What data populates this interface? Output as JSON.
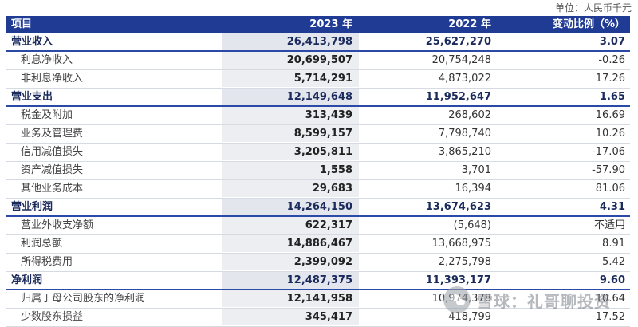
{
  "unit_note": "单位：人民币千元",
  "header": {
    "item": "项目",
    "y2023": "2023 年",
    "y2022": "2022 年",
    "change": "变动比例（%）"
  },
  "rows": [
    {
      "label": "营业收入",
      "y2023": "26,413,798",
      "y2022": "25,627,270",
      "change": "3.07"
    },
    {
      "label": "利息净收入",
      "y2023": "20,699,507",
      "y2022": "20,754,248",
      "change": "-0.26"
    },
    {
      "label": "非利息净收入",
      "y2023": "5,714,291",
      "y2022": "4,873,022",
      "change": "17.26"
    },
    {
      "label": "营业支出",
      "y2023": "12,149,648",
      "y2022": "11,952,647",
      "change": "1.65"
    },
    {
      "label": "税金及附加",
      "y2023": "313,439",
      "y2022": "268,602",
      "change": "16.69"
    },
    {
      "label": "业务及管理费",
      "y2023": "8,599,157",
      "y2022": "7,798,740",
      "change": "10.26"
    },
    {
      "label": "信用减值损失",
      "y2023": "3,205,811",
      "y2022": "3,865,210",
      "change": "-17.06"
    },
    {
      "label": "资产减值损失",
      "y2023": "1,558",
      "y2022": "3,701",
      "change": "-57.90"
    },
    {
      "label": "其他业务成本",
      "y2023": "29,683",
      "y2022": "16,394",
      "change": "81.06"
    },
    {
      "label": "营业利润",
      "y2023": "14,264,150",
      "y2022": "13,674,623",
      "change": "4.31"
    },
    {
      "label": "营业外收支净额",
      "y2023": "622,317",
      "y2022": "(5,648)",
      "change": "不适用"
    },
    {
      "label": "利润总额",
      "y2023": "14,886,467",
      "y2022": "13,668,975",
      "change": "8.91"
    },
    {
      "label": "所得税费用",
      "y2023": "2,399,092",
      "y2022": "2,275,798",
      "change": "5.42"
    },
    {
      "label": "净利润",
      "y2023": "12,487,375",
      "y2022": "11,393,177",
      "change": "9.60"
    },
    {
      "label": "归属于母公司股东的净利润",
      "y2023": "12,141,958",
      "y2022": "10,974,378",
      "change": "10.64"
    },
    {
      "label": "少数股东损益",
      "y2023": "345,417",
      "y2022": "418,799",
      "change": "-17.52"
    }
  ],
  "watermark": {
    "text": "雪球：礼哥聊投资",
    "icon": "snowball-logo-icon"
  }
}
